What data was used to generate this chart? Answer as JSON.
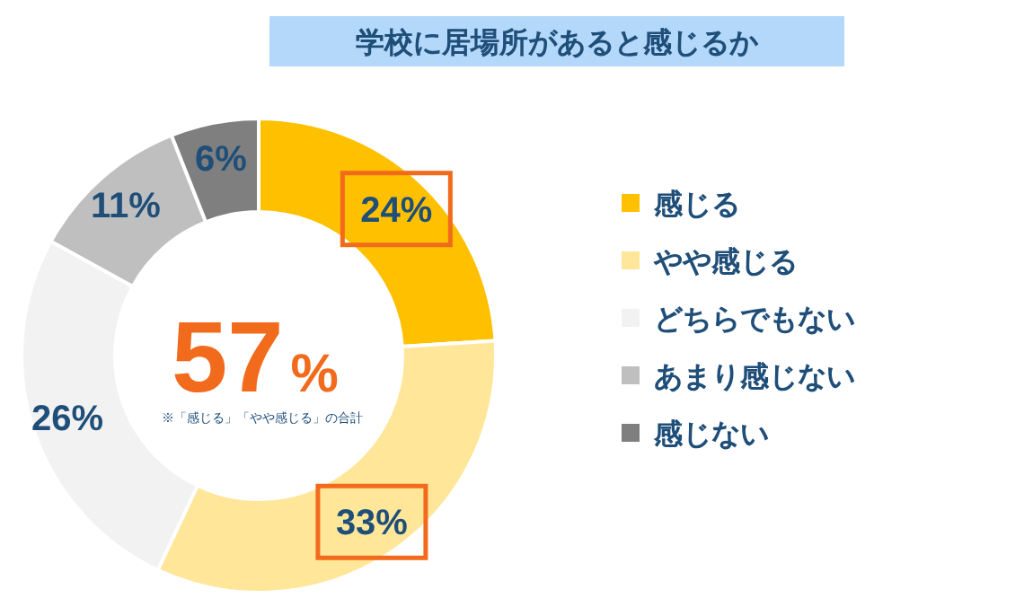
{
  "chart_data": {
    "type": "donut",
    "title": "学校に居場所があると感じるか",
    "categories": [
      "感じる",
      "やや感じる",
      "どちらでもない",
      "あまり感じない",
      "感じない"
    ],
    "values": [
      24,
      33,
      26,
      11,
      6
    ],
    "colors": [
      "#ffc000",
      "#ffe699",
      "#f2f2f2",
      "#bfbfbf",
      "#7f7f7f"
    ],
    "value_labels": [
      "24%",
      "33%",
      "26%",
      "11%",
      "6%"
    ],
    "legend": "right",
    "annotations": [
      "57%",
      "※「感じる」「やや感じる」の合計"
    ]
  }
}
